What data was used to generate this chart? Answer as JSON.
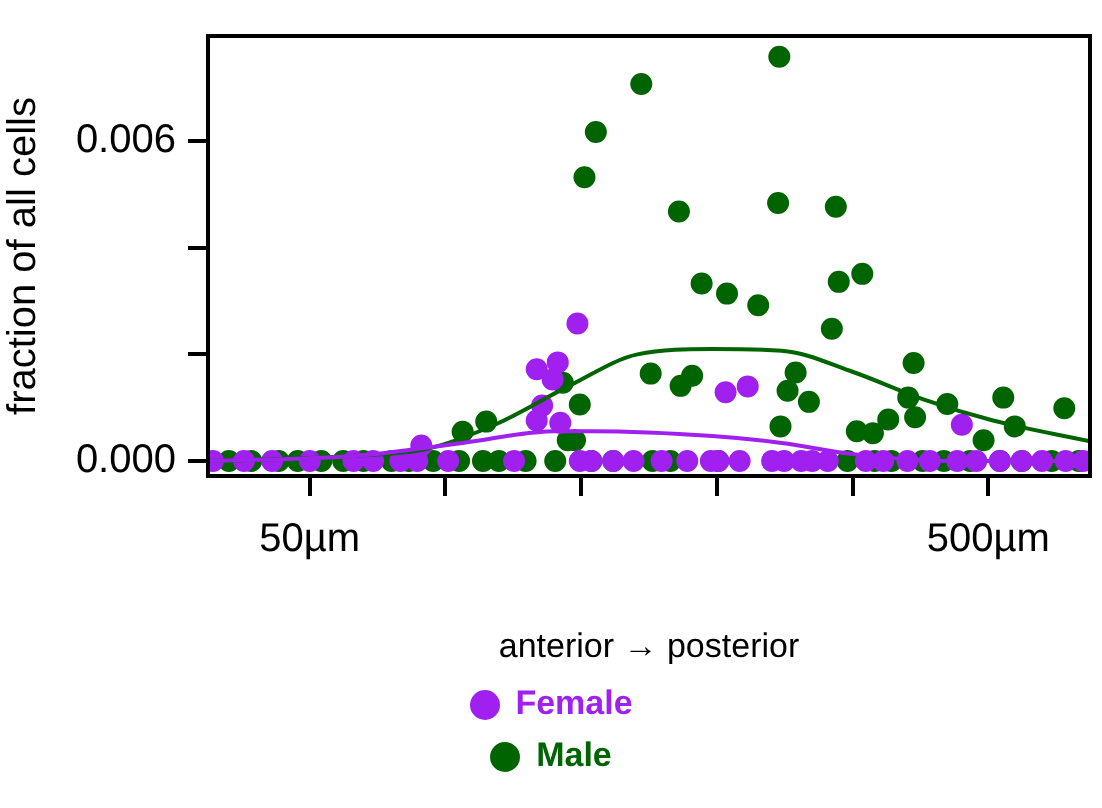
{
  "chart_data": {
    "type": "scatter",
    "xlabel": "anterior → posterior",
    "ylabel": "fraction of all cells",
    "log": "x",
    "xlim": [
      35.4,
      706
    ],
    "xticks": [
      {
        "value": 50,
        "label": "50µm"
      },
      {
        "value": 79.2,
        "label": null
      },
      {
        "value": 125.6,
        "label": null
      },
      {
        "value": 199,
        "label": null
      },
      {
        "value": 315.5,
        "label": null
      },
      {
        "value": 500,
        "label": "500µm"
      }
    ],
    "ylim": [
      -0.00028,
      0.00797
    ],
    "yticks": [
      {
        "value": 0,
        "label": "0.000"
      },
      {
        "value": 0.002,
        "label": null
      },
      {
        "value": 0.004,
        "label": null
      },
      {
        "value": 0.006,
        "label": "0.006"
      }
    ],
    "grid": false,
    "legend": "bottom",
    "series": [
      {
        "name": "Female",
        "color": "#a020f0",
        "marker": "circle",
        "x": [
          124,
          108,
          116,
          114,
          110,
          117,
          108,
          205,
          221,
          73,
          457,
          36,
          40,
          44,
          50,
          58,
          62,
          68,
          72,
          80,
          100,
          125,
          130,
          140,
          150,
          165,
          180,
          195,
          200,
          215,
          240,
          250,
          265,
          275,
          290,
          330,
          350,
          380,
          410,
          450,
          480,
          520,
          560,
          600,
          650,
          690
        ],
        "values": [
          0.00258,
          0.00172,
          0.00185,
          0.00153,
          0.00104,
          0.00072,
          0.00076,
          0.00129,
          0.0014,
          0.00029,
          0.00068,
          0,
          0,
          0,
          0,
          0,
          0,
          0,
          0,
          0,
          0,
          0,
          0,
          0,
          0,
          0,
          0,
          0,
          0,
          0,
          0,
          0,
          0,
          0,
          0,
          0,
          0,
          0,
          0,
          0,
          0,
          0,
          0,
          0,
          0,
          0
        ]
      },
      {
        "name": "Male",
        "color": "#006400",
        "marker": "circle",
        "x": [
          246,
          154,
          132,
          127,
          245,
          175,
          298,
          301,
          326,
          189,
          206,
          229,
          294,
          388,
          159,
          183,
          176,
          260,
          253,
          272,
          118,
          125,
          381,
          390,
          356,
          435,
          526,
          547,
          647,
          492,
          320,
          338,
          247,
          84,
          91,
          120,
          123,
          38,
          41,
          45,
          48,
          52,
          56,
          60,
          66,
          70,
          76,
          83,
          90,
          95,
          104,
          115,
          130,
          140,
          160,
          170,
          200,
          310,
          340,
          360,
          400,
          430,
          470,
          520,
          560,
          620,
          680
        ],
        "values": [
          0.00758,
          0.00707,
          0.00617,
          0.00532,
          0.00484,
          0.00468,
          0.00477,
          0.00336,
          0.00351,
          0.00333,
          0.00314,
          0.00292,
          0.00248,
          0.00184,
          0.00164,
          0.0016,
          0.00141,
          0.00166,
          0.00132,
          0.00111,
          0.00147,
          0.00106,
          0.00119,
          0.00082,
          0.00078,
          0.00107,
          0.00119,
          0.00065,
          0.00099,
          0.00039,
          0.00056,
          0.00052,
          0.00065,
          0.00055,
          0.00074,
          0.00039,
          0.00039,
          0,
          0,
          0,
          0,
          0,
          0,
          0,
          0,
          0,
          0,
          0,
          0,
          0,
          0,
          0,
          0,
          0,
          0,
          0,
          0,
          0,
          0,
          0,
          0,
          0,
          0,
          0,
          0,
          0,
          0
        ]
      },
      {
        "color": "#a020f0",
        "type": "line",
        "marker": "none",
        "x": [
          35.5,
          58.6,
          84,
          115,
          130,
          196,
          248,
          316,
          445,
          706
        ],
        "values": [
          0,
          0.0001,
          0.00034,
          0.00056,
          0.00056,
          0.00047,
          0.00034,
          0.00013,
          0,
          0
        ]
      },
      {
        "color": "#006400",
        "type": "line",
        "marker": "none",
        "x": [
          35.5,
          58.6,
          74.5,
          94,
          120.6,
          152,
          196,
          248,
          316,
          402,
          508,
          706
        ],
        "values": [
          0,
          0.0001,
          0.00023,
          0.00069,
          0.00141,
          0.002,
          0.0021,
          0.00207,
          0.00167,
          0.00115,
          0.00076,
          0.00037
        ]
      }
    ]
  }
}
